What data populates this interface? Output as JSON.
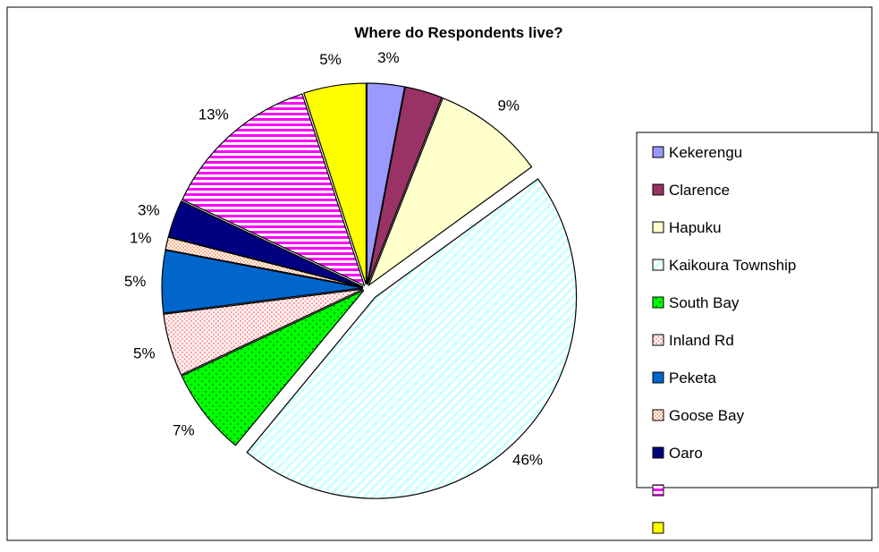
{
  "chart_data": {
    "type": "pie",
    "title": "Where do Respondents live?",
    "legend_position": "right",
    "slices": [
      {
        "name": "Kekerengu",
        "value": 3,
        "label": "3%",
        "color": "#9999FF",
        "pattern": "solid"
      },
      {
        "name": "Clarence",
        "value": 3,
        "label": "",
        "color": "#993366",
        "pattern": "solid"
      },
      {
        "name": "Hapuku",
        "value": 9,
        "label": "9%",
        "color": "#FFFFCC",
        "pattern": "solid"
      },
      {
        "name": "Kaikoura Township",
        "value": 46,
        "label": "46%",
        "color": "#CCFFFF",
        "pattern": "diagonal-stripes"
      },
      {
        "name": "South Bay",
        "value": 7,
        "label": "7%",
        "color": "#00FF00",
        "pattern": "dots"
      },
      {
        "name": "Inland Rd",
        "value": 5,
        "label": "5%",
        "color": "#FF9999",
        "pattern": "dense-dots"
      },
      {
        "name": "Peketa",
        "value": 5,
        "label": "5%",
        "color": "#0066CC",
        "pattern": "solid"
      },
      {
        "name": "Goose Bay",
        "value": 1,
        "label": "1%",
        "color": "#FF9966",
        "pattern": "dense-dots"
      },
      {
        "name": "Oaro",
        "value": 3,
        "label": "3%",
        "color": "#000080",
        "pattern": "solid"
      },
      {
        "name": "",
        "value": 13,
        "label": "13%",
        "color": "#FF00FF",
        "pattern": "horizontal-stripes"
      },
      {
        "name": "",
        "value": 5,
        "label": "5%",
        "color": "#FFFF00",
        "pattern": "solid"
      }
    ]
  }
}
